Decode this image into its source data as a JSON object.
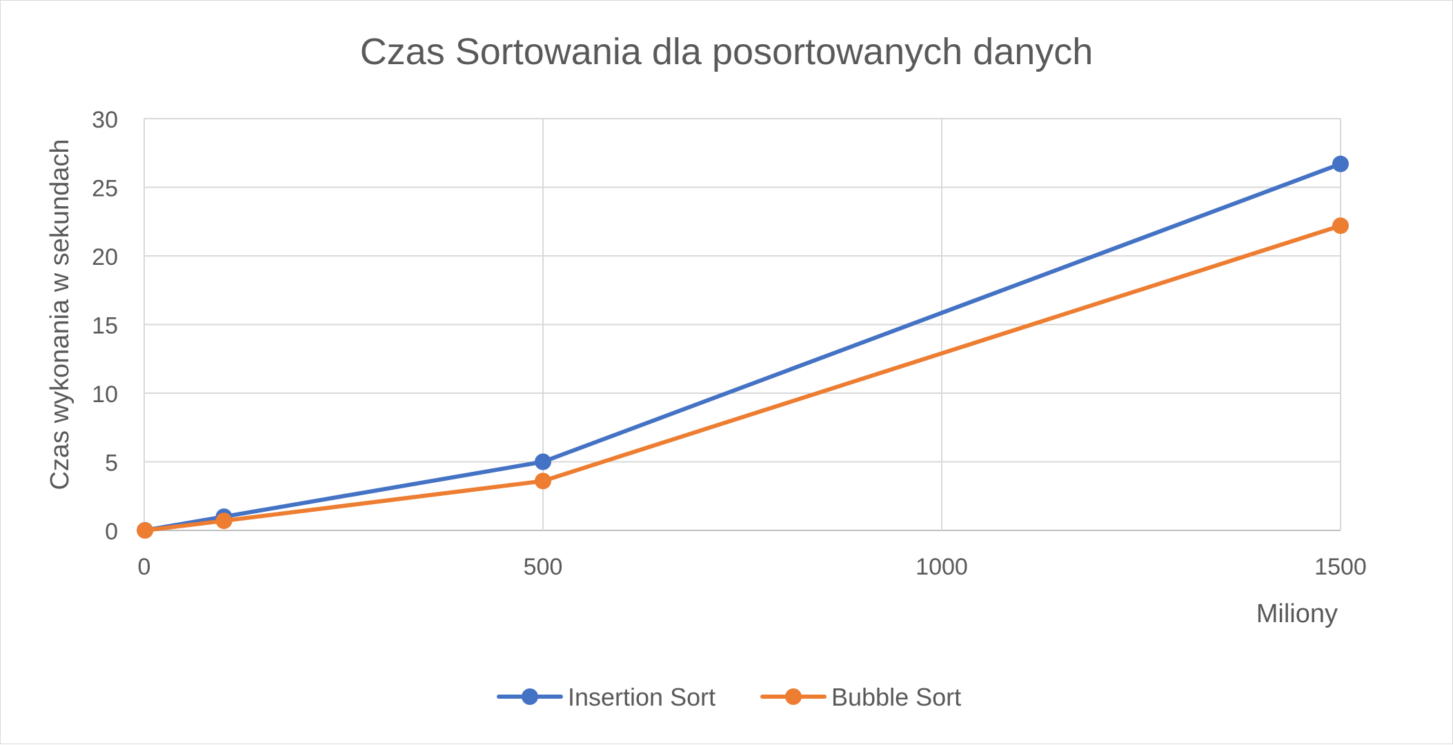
{
  "chart_data": {
    "type": "line",
    "title": "Czas Sortowania dla posortowanych danych",
    "xlabel": "Miliony",
    "ylabel": "Czas wykonania w sekundach",
    "xlim": [
      0,
      1500
    ],
    "ylim": [
      0,
      30
    ],
    "x_ticks": [
      "0",
      "500",
      "1000",
      "1500"
    ],
    "y_ticks": [
      "0",
      "5",
      "10",
      "15",
      "20",
      "25",
      "30"
    ],
    "grid": true,
    "legend_position": "bottom",
    "series": [
      {
        "name": "Insertion Sort",
        "color": "#4472c4",
        "points": [
          {
            "x": 1,
            "y": 0.01
          },
          {
            "x": 100,
            "y": 1.0
          },
          {
            "x": 500,
            "y": 5.0
          },
          {
            "x": 1500,
            "y": 26.7
          }
        ]
      },
      {
        "name": "Bubble Sort",
        "color": "#ed7d31",
        "points": [
          {
            "x": 1,
            "y": 0.0
          },
          {
            "x": 100,
            "y": 0.7
          },
          {
            "x": 500,
            "y": 3.6
          },
          {
            "x": 1500,
            "y": 22.2
          }
        ]
      }
    ],
    "colors": {
      "grid": "#d9d9d9",
      "text": "#595959",
      "axis": "#bfbfbf"
    }
  }
}
